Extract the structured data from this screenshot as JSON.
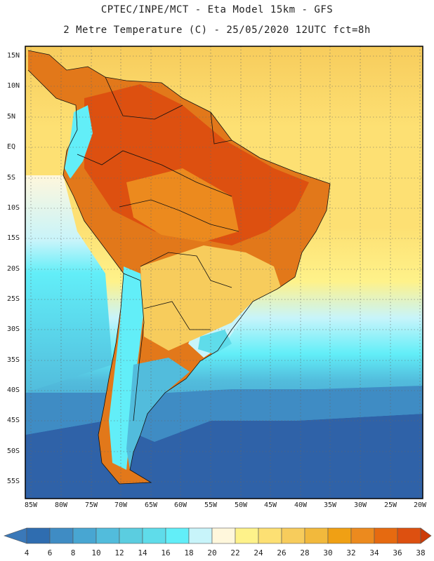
{
  "header": {
    "line1": "CPTEC/INPE/MCT -  Eta Model 15km - GFS",
    "line2": "2 Metre Temperature (C) - 25/05/2020 12UTC fct=8h"
  },
  "axes": {
    "lat_labels": [
      "15N",
      "10N",
      "5N",
      "EQ",
      "5S",
      "10S",
      "15S",
      "20S",
      "25S",
      "30S",
      "35S",
      "40S",
      "45S",
      "50S",
      "55S"
    ],
    "lon_labels": [
      "85W",
      "80W",
      "75W",
      "70W",
      "65W",
      "60W",
      "55W",
      "50W",
      "45W",
      "40W",
      "35W",
      "30W",
      "25W",
      "20W"
    ]
  },
  "colorbar": {
    "labels": [
      "4",
      "6",
      "8",
      "10",
      "12",
      "14",
      "16",
      "18",
      "20",
      "22",
      "24",
      "26",
      "28",
      "30",
      "32",
      "34",
      "36",
      "38"
    ],
    "colors": [
      "#3a78b8",
      "#2f6db0",
      "#3f8cc4",
      "#48a6d2",
      "#52bcdc",
      "#5bcde0",
      "#5fdcea",
      "#62eef8",
      "#c8f4fa",
      "#fff7dc",
      "#fef28a",
      "#fde073",
      "#f7cc5c",
      "#f2b93c",
      "#f0a014",
      "#ec8a1e",
      "#e66a10",
      "#dd5010",
      "#cc3c08"
    ]
  },
  "colors": {
    "ocean_south": "#2f62a8",
    "ocean_mid": "#48a6d2",
    "ocean_warm": "#fde073",
    "land_hot": "#e2781a",
    "border": "#111111"
  }
}
